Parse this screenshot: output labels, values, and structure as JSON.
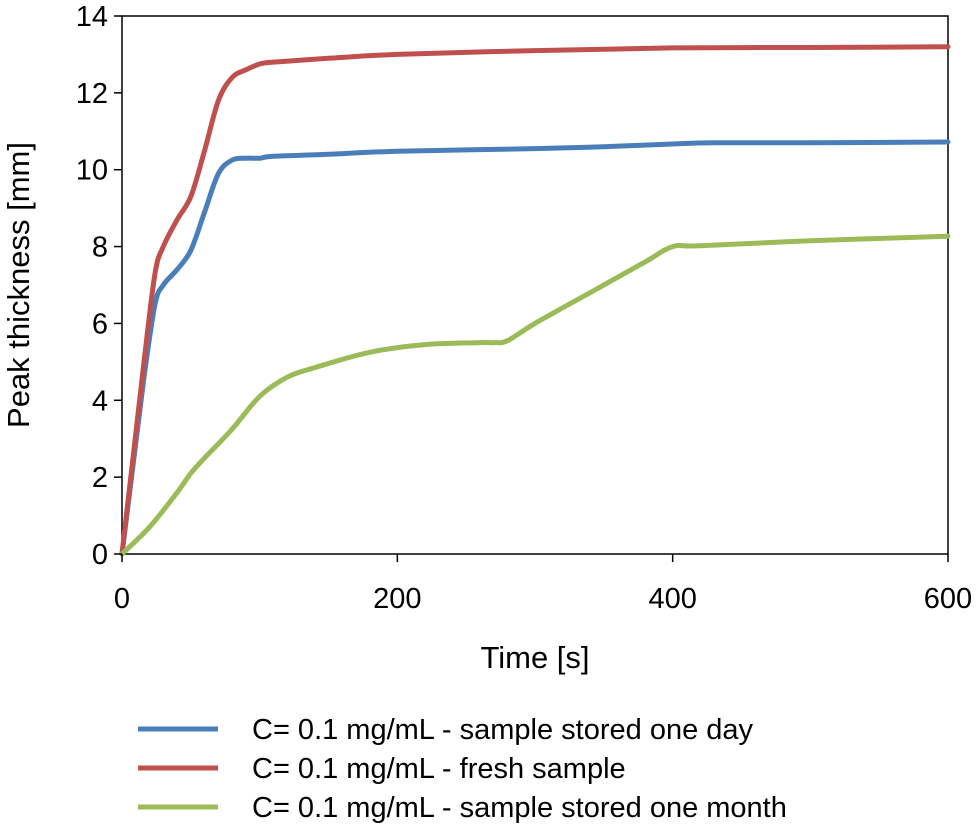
{
  "chart_data": {
    "type": "line",
    "title": "",
    "xlabel": "Time [s]",
    "ylabel": "Peak thickness [mm]",
    "xlim": [
      0,
      600
    ],
    "ylim": [
      0,
      14
    ],
    "xticks": [
      0,
      200,
      400,
      600
    ],
    "yticks": [
      0,
      2,
      4,
      6,
      8,
      10,
      12,
      14
    ],
    "grid": false,
    "legend_position": "bottom",
    "series": [
      {
        "name": "C= 0.1 mg/mL - sample stored one day",
        "color": "#4a7ebb",
        "x": [
          0,
          8,
          16,
          24,
          30,
          40,
          50,
          60,
          70,
          80,
          90,
          100,
          110,
          150,
          200,
          300,
          350,
          400,
          430,
          500,
          600
        ],
        "y": [
          0,
          2.3,
          4.6,
          6.5,
          7.0,
          7.4,
          7.9,
          8.9,
          9.9,
          10.25,
          10.3,
          10.3,
          10.35,
          10.4,
          10.48,
          10.55,
          10.6,
          10.67,
          10.7,
          10.7,
          10.72
        ]
      },
      {
        "name": "C= 0.1 mg/mL - fresh sample",
        "color": "#c0504d",
        "x": [
          0,
          8,
          16,
          24,
          30,
          40,
          50,
          60,
          70,
          80,
          90,
          100,
          110,
          150,
          200,
          300,
          400,
          500,
          600
        ],
        "y": [
          0,
          2.5,
          5.0,
          7.3,
          8.0,
          8.7,
          9.3,
          10.5,
          11.8,
          12.4,
          12.6,
          12.75,
          12.8,
          12.9,
          13.0,
          13.1,
          13.17,
          13.18,
          13.2
        ]
      },
      {
        "name": "C= 0.1 mg/mL - sample stored one month",
        "color": "#9bbb59",
        "x": [
          0,
          20,
          40,
          50,
          60,
          80,
          100,
          120,
          140,
          180,
          220,
          260,
          270,
          280,
          300,
          340,
          380,
          400,
          420,
          500,
          600
        ],
        "y": [
          0,
          0.7,
          1.6,
          2.1,
          2.5,
          3.25,
          4.1,
          4.6,
          4.85,
          5.25,
          5.45,
          5.5,
          5.5,
          5.55,
          6.0,
          6.8,
          7.6,
          8.0,
          8.02,
          8.15,
          8.27
        ]
      }
    ]
  }
}
